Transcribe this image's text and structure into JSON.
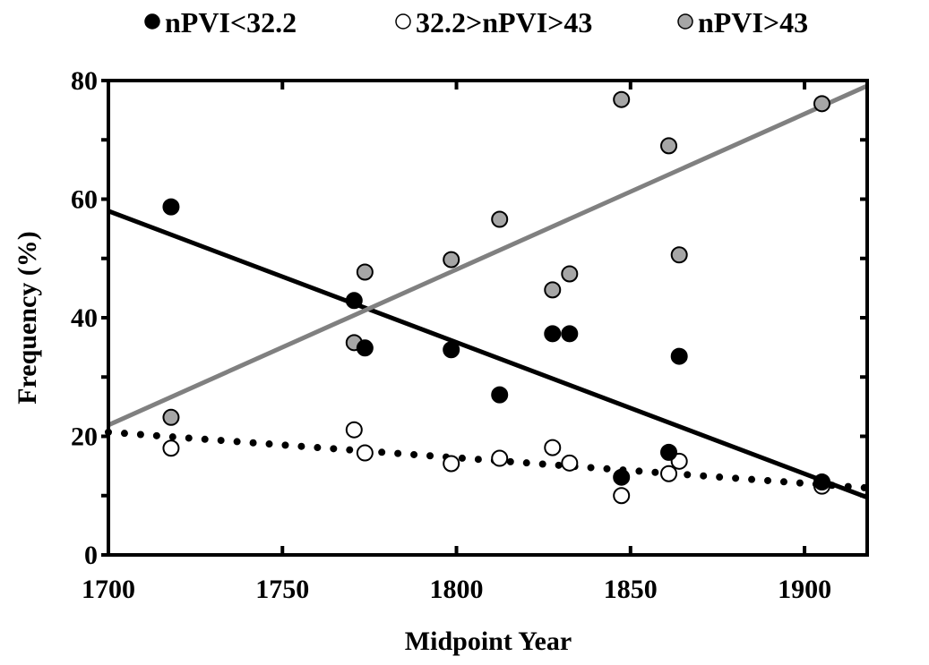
{
  "chart_data": {
    "type": "scatter",
    "title": "",
    "xlabel": "Midpoint Year",
    "ylabel": "Frequency (%)",
    "xlim": [
      1700,
      1918
    ],
    "ylim": [
      0,
      80
    ],
    "xticks": [
      1700,
      1750,
      1800,
      1850,
      1900
    ],
    "yticks": [
      0,
      20,
      40,
      60,
      80
    ],
    "grid": false,
    "legend_position": "top",
    "series": [
      {
        "name": "nPVI<32.2",
        "color": "#000000",
        "marker": "filled",
        "x": [
          1718,
          1770.6,
          1773.7,
          1798.5,
          1812.4,
          1827.6,
          1832.5,
          1847.4,
          1861,
          1864,
          1905
        ],
        "y": [
          58.7,
          42.9,
          34.9,
          34.6,
          27.0,
          37.3,
          37.3,
          13.1,
          17.3,
          33.5,
          12.3
        ],
        "trend": {
          "style": "solid",
          "color": "#000000",
          "x": [
            1700,
            1918
          ],
          "y": [
            58.0,
            9.7
          ]
        }
      },
      {
        "name": "32.2>nPVI>43",
        "color": "#ffffff",
        "marker": "open",
        "x": [
          1718,
          1770.6,
          1773.7,
          1798.5,
          1812.4,
          1827.6,
          1832.5,
          1847.4,
          1861,
          1864,
          1905
        ],
        "y": [
          18.0,
          21.1,
          17.2,
          15.4,
          16.3,
          18.1,
          15.5,
          10.0,
          13.7,
          15.8,
          11.6
        ],
        "trend": {
          "style": "dotted",
          "color": "#000000",
          "x": [
            1700,
            1918
          ],
          "y": [
            20.7,
            11.3
          ]
        }
      },
      {
        "name": "nPVI>43",
        "color": "#a6a6a6",
        "marker": "gray",
        "x": [
          1718,
          1770.6,
          1773.7,
          1798.5,
          1812.4,
          1827.6,
          1832.5,
          1847.4,
          1861,
          1864,
          1905
        ],
        "y": [
          23.2,
          35.8,
          47.7,
          49.8,
          56.6,
          44.7,
          47.4,
          76.8,
          69.0,
          50.6,
          76.1
        ],
        "trend": {
          "style": "solid",
          "color": "#808080",
          "x": [
            1700,
            1918
          ],
          "y": [
            21.9,
            79.1
          ]
        }
      }
    ]
  }
}
